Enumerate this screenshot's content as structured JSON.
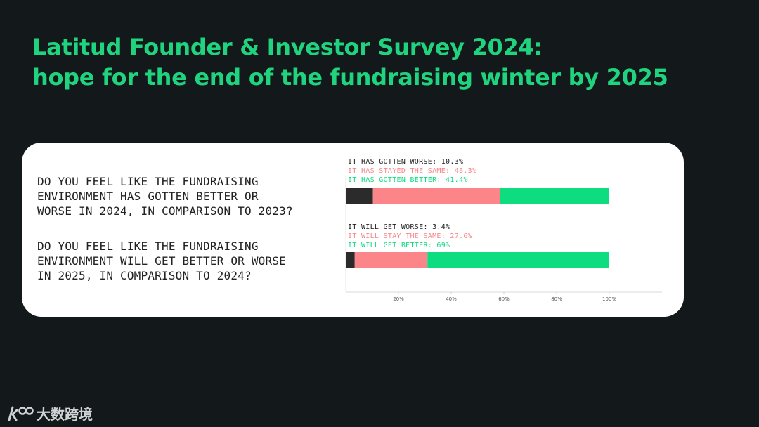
{
  "title": {
    "line1": "Latitud Founder & Investor Survey 2024:",
    "line2": "hope for the end of the fundraising winter by 2025"
  },
  "questions": [
    {
      "lines": [
        "DO YOU FEEL LIKE THE FUNDRAISING",
        "ENVIRONMENT HAS GOTTEN BETTER OR",
        "WORSE IN 2024, IN COMPARISON TO 2023?"
      ]
    },
    {
      "lines": [
        "DO YOU FEEL LIKE THE FUNDRAISING",
        "ENVIRONMENT WILL GET BETTER OR WORSE",
        "IN 2025, IN COMPARISON TO 2024?"
      ]
    }
  ],
  "colors": {
    "worse": "#2b2b2b",
    "same": "#fb8589",
    "better": "#0ddc7f",
    "title": "#20d47f",
    "background": "#13181a"
  },
  "chart_data": {
    "type": "bar",
    "orientation": "horizontal-stacked",
    "xlim": [
      0,
      120
    ],
    "ticks": [
      20,
      40,
      60,
      80,
      100
    ],
    "tick_labels": [
      "20%",
      "40%",
      "60%",
      "80%",
      "100%"
    ],
    "bars": [
      {
        "segments": [
          {
            "label": "IT HAS GOTTEN WORSE: 10.3%",
            "value": 10.3,
            "color_key": "worse"
          },
          {
            "label": "IT HAS STAYED THE SAME: 48.3%",
            "value": 48.3,
            "color_key": "same"
          },
          {
            "label": "IT HAS GOTTEN BETTER: 41.4%",
            "value": 41.4,
            "color_key": "better"
          }
        ]
      },
      {
        "segments": [
          {
            "label": "IT WILL GET WORSE: 3.4%",
            "value": 3.4,
            "color_key": "worse"
          },
          {
            "label": "IT WILL STAY THE SAME: 27.6%",
            "value": 27.6,
            "color_key": "same"
          },
          {
            "label": "IT WILL GET BETTER: 69%",
            "value": 69,
            "color_key": "better"
          }
        ]
      }
    ]
  },
  "watermark": {
    "text": "大数跨境",
    "icon": "kuajing-logo-icon"
  }
}
